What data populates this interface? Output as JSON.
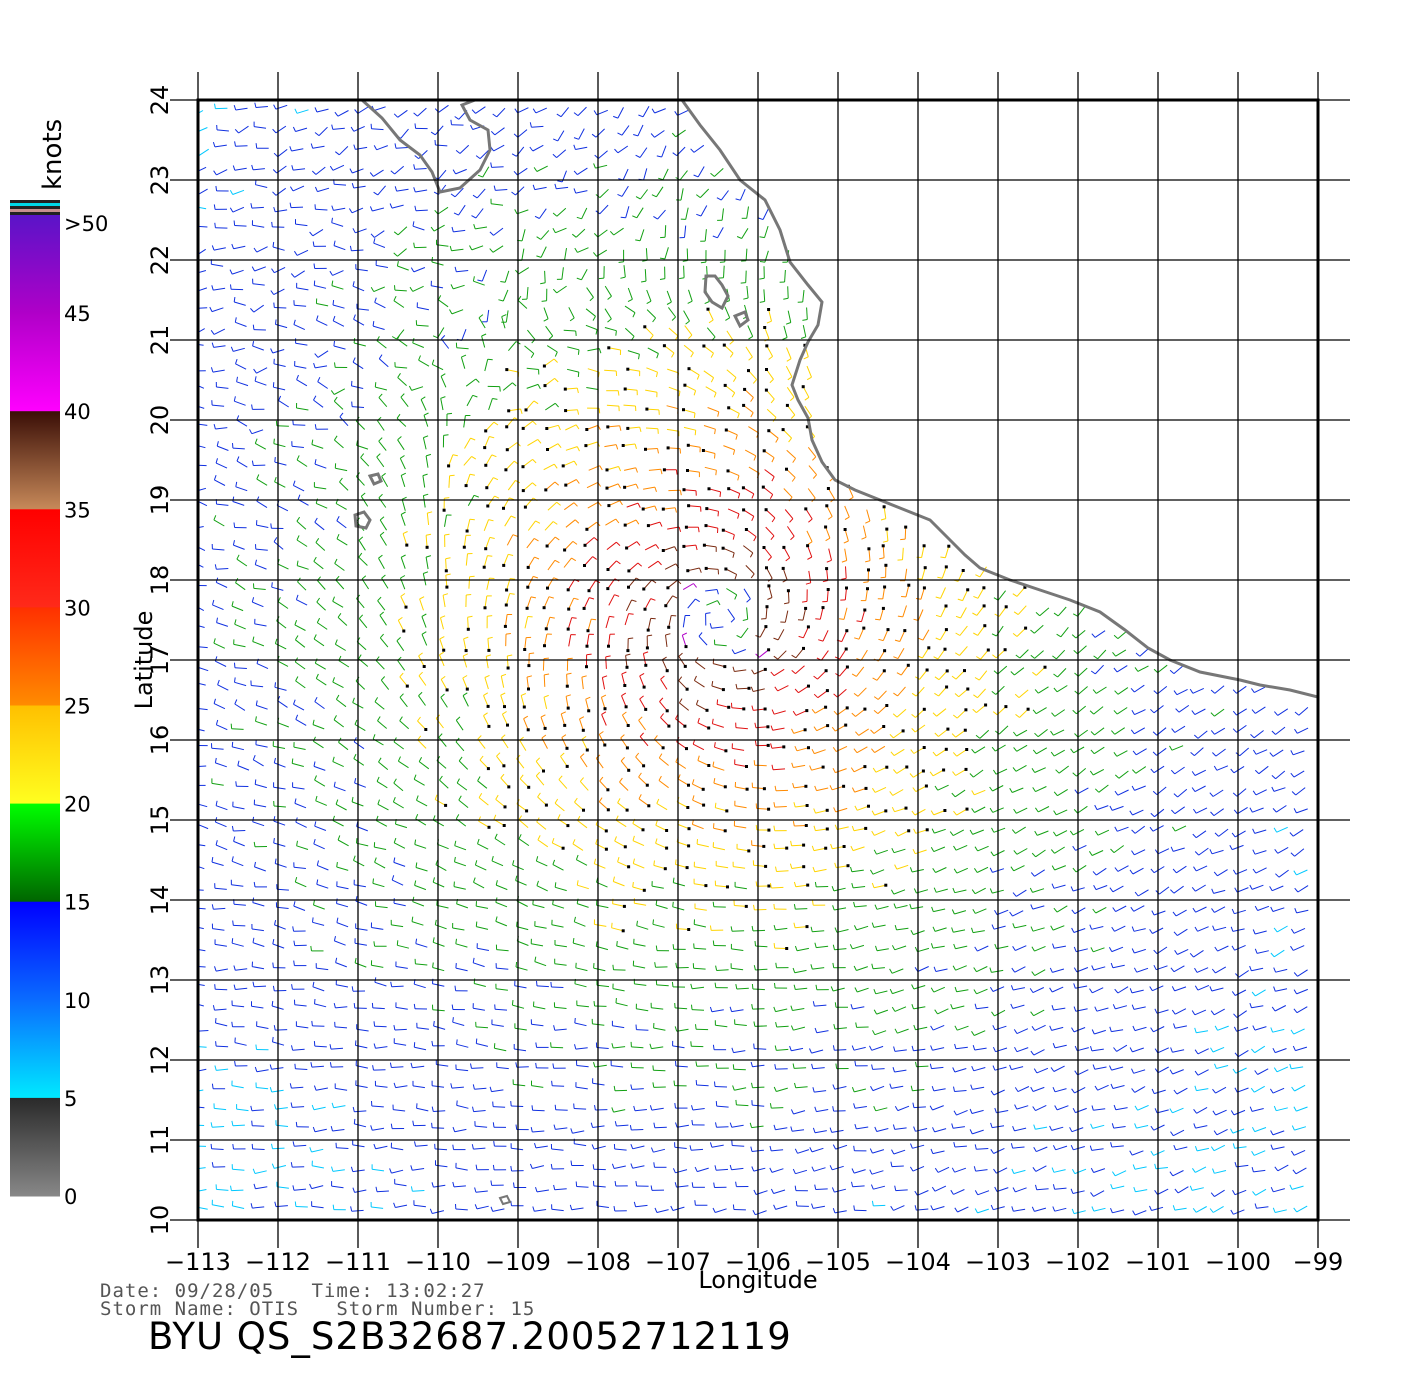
{
  "legend": {
    "unit": "knots",
    "labels": [
      ">50",
      "45",
      "40",
      "35",
      "30",
      "25",
      "20",
      "15",
      "10",
      "5",
      "0"
    ],
    "colors": {
      "0-5": [
        "#888888",
        "#2a2a2a"
      ],
      "5-10": [
        "#00eaff",
        "#0a6cff"
      ],
      "10-15": [
        "#0a6cff",
        "#0000ff"
      ],
      "15-20": [
        "#006400",
        "#00ff00"
      ],
      "20-25": [
        "#ffff20",
        "#ffc000"
      ],
      "25-30": [
        "#ff8c00",
        "#ff3000"
      ],
      "30-35": [
        "#ff2a1a",
        "#ff0000"
      ],
      "35-40": [
        "#c88a5a",
        "#3a0e06"
      ],
      "40-45": [
        "#ff00ff",
        "#b000c8"
      ],
      "45-50": [
        "#b000c8",
        "#5a14c8"
      ]
    }
  },
  "axes": {
    "xlabel": "Longitude",
    "ylabel": "Latitude",
    "lon_ticks": [
      "−113",
      "−112",
      "−111",
      "−110",
      "−109",
      "−108",
      "−107",
      "−106",
      "−105",
      "−104",
      "−103",
      "−102",
      "−101",
      "−100",
      "−99"
    ],
    "lat_ticks": [
      "10",
      "11",
      "12",
      "13",
      "14",
      "15",
      "16",
      "17",
      "18",
      "19",
      "20",
      "21",
      "22",
      "23",
      "24"
    ],
    "lon_range": [
      -113,
      -99
    ],
    "lat_range": [
      10,
      24
    ],
    "grid": true
  },
  "info": {
    "date_line": "Date: 09/28/05   Time: 13:02:27",
    "storm_line": "Storm Name: OTIS   Storm Number: 15",
    "file_id": "BYU QS_S2B32687.20052712119"
  },
  "map": {
    "coastline_color": "#777777",
    "storm_name": "OTIS",
    "grid_color": "#000000"
  }
}
